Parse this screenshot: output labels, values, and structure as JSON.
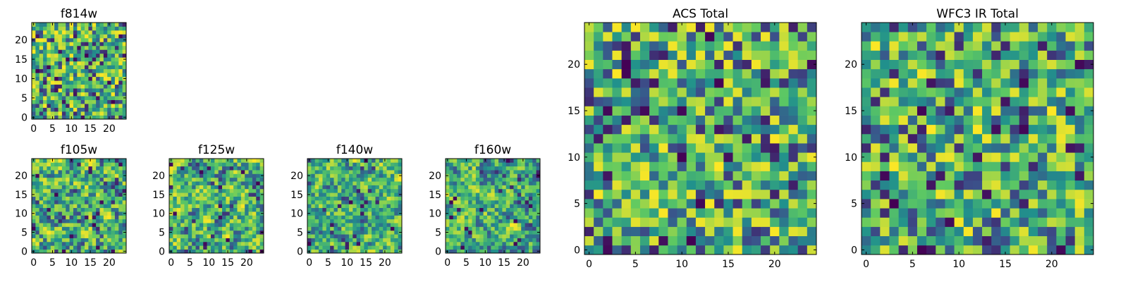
{
  "chart_data": [
    {
      "id": "f814w",
      "type": "heatmap",
      "title": "f814w",
      "grid_size": 25,
      "pixel_scale": "small",
      "xlim": [
        -0.5,
        24.5
      ],
      "ylim": [
        -0.5,
        24.5
      ],
      "xticks": [
        0,
        5,
        10,
        15,
        20
      ],
      "yticks": [
        0,
        5,
        10,
        15,
        20
      ],
      "xtick_labels": [
        "0",
        "5",
        "10",
        "15",
        "20"
      ],
      "ytick_labels": [
        "0",
        "5",
        "10",
        "15",
        "20"
      ],
      "colormap": "viridis",
      "seed": 11,
      "smoothness": 0
    },
    {
      "id": "f105w",
      "type": "heatmap",
      "title": "f105w",
      "grid_size": 25,
      "pixel_scale": "small",
      "xlim": [
        -0.5,
        24.5
      ],
      "ylim": [
        -0.5,
        24.5
      ],
      "xticks": [
        0,
        5,
        10,
        15,
        20
      ],
      "yticks": [
        0,
        5,
        10,
        15,
        20
      ],
      "xtick_labels": [
        "0",
        "5",
        "10",
        "15",
        "20"
      ],
      "ytick_labels": [
        "0",
        "5",
        "10",
        "15",
        "20"
      ],
      "colormap": "viridis",
      "seed": 23,
      "smoothness": 1
    },
    {
      "id": "f125w",
      "type": "heatmap",
      "title": "f125w",
      "grid_size": 25,
      "pixel_scale": "small",
      "xlim": [
        -0.5,
        24.5
      ],
      "ylim": [
        -0.5,
        24.5
      ],
      "xticks": [
        0,
        5,
        10,
        15,
        20
      ],
      "yticks": [
        0,
        5,
        10,
        15,
        20
      ],
      "xtick_labels": [
        "0",
        "5",
        "10",
        "15",
        "20"
      ],
      "ytick_labels": [
        "0",
        "5",
        "10",
        "15",
        "20"
      ],
      "colormap": "viridis",
      "seed": 37,
      "smoothness": 1
    },
    {
      "id": "f140w",
      "type": "heatmap",
      "title": "f140w",
      "grid_size": 25,
      "pixel_scale": "small",
      "xlim": [
        -0.5,
        24.5
      ],
      "ylim": [
        -0.5,
        24.5
      ],
      "xticks": [
        0,
        5,
        10,
        15,
        20
      ],
      "yticks": [
        0,
        5,
        10,
        15,
        20
      ],
      "xtick_labels": [
        "0",
        "5",
        "10",
        "15",
        "20"
      ],
      "ytick_labels": [
        "0",
        "5",
        "10",
        "15",
        "20"
      ],
      "colormap": "viridis",
      "seed": 41,
      "smoothness": 1
    },
    {
      "id": "f160w",
      "type": "heatmap",
      "title": "f160w",
      "grid_size": 25,
      "pixel_scale": "small",
      "xlim": [
        -0.5,
        24.5
      ],
      "ylim": [
        -0.5,
        24.5
      ],
      "xticks": [
        0,
        5,
        10,
        15,
        20
      ],
      "yticks": [
        0,
        5,
        10,
        15,
        20
      ],
      "xtick_labels": [
        "0",
        "5",
        "10",
        "15",
        "20"
      ],
      "ytick_labels": [
        "0",
        "5",
        "10",
        "15",
        "20"
      ],
      "colormap": "viridis",
      "seed": 53,
      "smoothness": 1
    },
    {
      "id": "acs-total",
      "type": "heatmap",
      "title": "ACS Total",
      "grid_size": 25,
      "pixel_scale": "large",
      "xlim": [
        -0.5,
        24.5
      ],
      "ylim": [
        -0.5,
        24.5
      ],
      "xticks": [
        0,
        5,
        10,
        15,
        20
      ],
      "yticks": [
        0,
        5,
        10,
        15,
        20
      ],
      "xtick_labels": [
        "0",
        "5",
        "10",
        "15",
        "20"
      ],
      "ytick_labels": [
        "0",
        "5",
        "10",
        "15",
        "20"
      ],
      "colormap": "viridis",
      "seed": 67,
      "smoothness": 0
    },
    {
      "id": "wfc3-ir-total",
      "type": "heatmap",
      "title": "WFC3 IR Total",
      "grid_size": 25,
      "pixel_scale": "large",
      "xlim": [
        -0.5,
        24.5
      ],
      "ylim": [
        -0.5,
        24.5
      ],
      "xticks": [
        0,
        5,
        10,
        15,
        20
      ],
      "yticks": [
        0,
        5,
        10,
        15,
        20
      ],
      "xtick_labels": [
        "0",
        "5",
        "10",
        "15",
        "20"
      ],
      "ytick_labels": [
        "0",
        "5",
        "10",
        "15",
        "20"
      ],
      "colormap": "viridis",
      "seed": 79,
      "smoothness": 0
    }
  ],
  "colors": {
    "viridis": [
      "#440154",
      "#3b528b",
      "#21918c",
      "#5ec962",
      "#fde725"
    ],
    "axes_edge": "#000000",
    "background": "#ffffff"
  }
}
